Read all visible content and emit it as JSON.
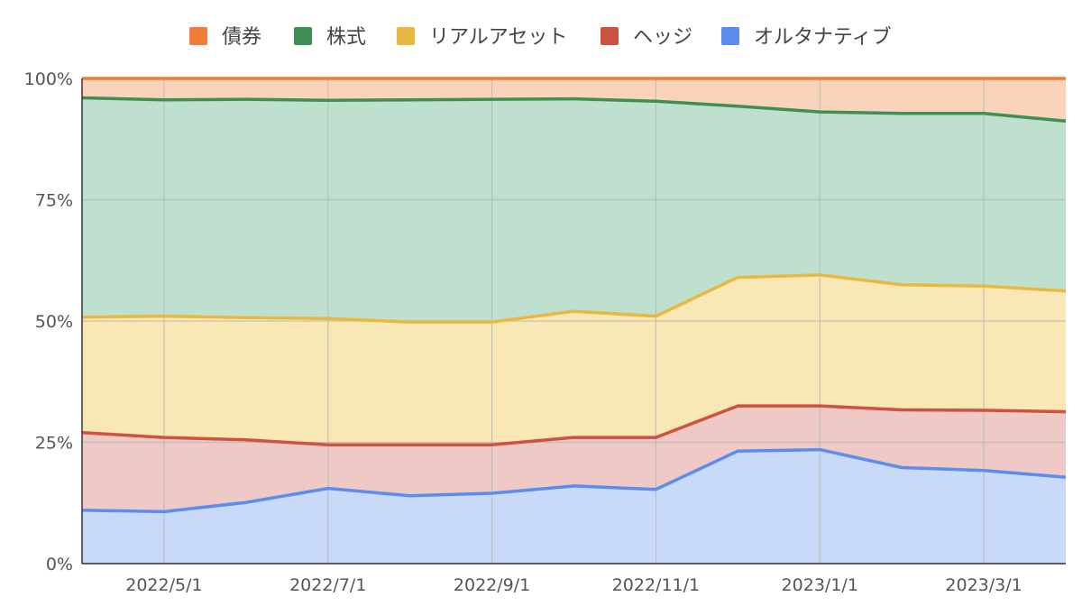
{
  "chart_data": {
    "type": "area",
    "stacked": true,
    "normalized": true,
    "title": "",
    "xlabel": "",
    "ylabel": "",
    "ylim": [
      0,
      100
    ],
    "grid": true,
    "legend_position": "top",
    "y_ticks": [
      "0%",
      "25%",
      "50%",
      "75%",
      "100%"
    ],
    "x_ticks": [
      "2022/5/1",
      "2022/7/1",
      "2022/9/1",
      "2022/11/1",
      "2023/1/1",
      "2023/3/1"
    ],
    "x": [
      "2022/4/1",
      "2022/5/1",
      "2022/6/1",
      "2022/7/1",
      "2022/8/1",
      "2022/9/1",
      "2022/10/1",
      "2022/11/1",
      "2022/12/1",
      "2023/1/1",
      "2023/2/1",
      "2023/3/1",
      "2023/4/1"
    ],
    "series": [
      {
        "name": "オルタナティブ",
        "color": "#5b8def",
        "fill": "#c9daf8",
        "values": [
          11.0,
          10.7,
          12.6,
          15.5,
          14.0,
          14.5,
          16.0,
          15.3,
          23.2,
          23.5,
          19.8,
          19.2,
          17.8
        ]
      },
      {
        "name": "ヘッジ",
        "color": "#cd5242",
        "fill": "#eec9c5",
        "values": [
          16.0,
          15.3,
          12.9,
          9.0,
          10.5,
          10.0,
          10.0,
          10.7,
          9.3,
          9.0,
          11.9,
          12.4,
          13.5
        ]
      },
      {
        "name": "リアルアセット",
        "color": "#e9b840",
        "fill": "#f9e8b6",
        "values": [
          23.8,
          25.0,
          25.2,
          26.0,
          25.3,
          25.3,
          26.0,
          25.0,
          26.5,
          27.0,
          25.8,
          25.6,
          24.9
        ]
      },
      {
        "name": "株式",
        "color": "#3e8f52",
        "fill": "#bfe0cf",
        "values": [
          45.2,
          44.6,
          45.0,
          45.0,
          45.8,
          45.9,
          43.8,
          44.3,
          35.3,
          33.6,
          35.3,
          35.6,
          35.0
        ]
      },
      {
        "name": "債券",
        "color": "#f07c37",
        "fill": "#f9d4bb",
        "values": [
          4.0,
          4.4,
          4.3,
          4.5,
          4.4,
          4.3,
          4.2,
          4.7,
          5.7,
          6.9,
          7.2,
          7.2,
          8.8
        ]
      }
    ],
    "legend_order": [
      "債券",
      "株式",
      "リアルアセット",
      "ヘッジ",
      "オルタナティブ"
    ]
  }
}
